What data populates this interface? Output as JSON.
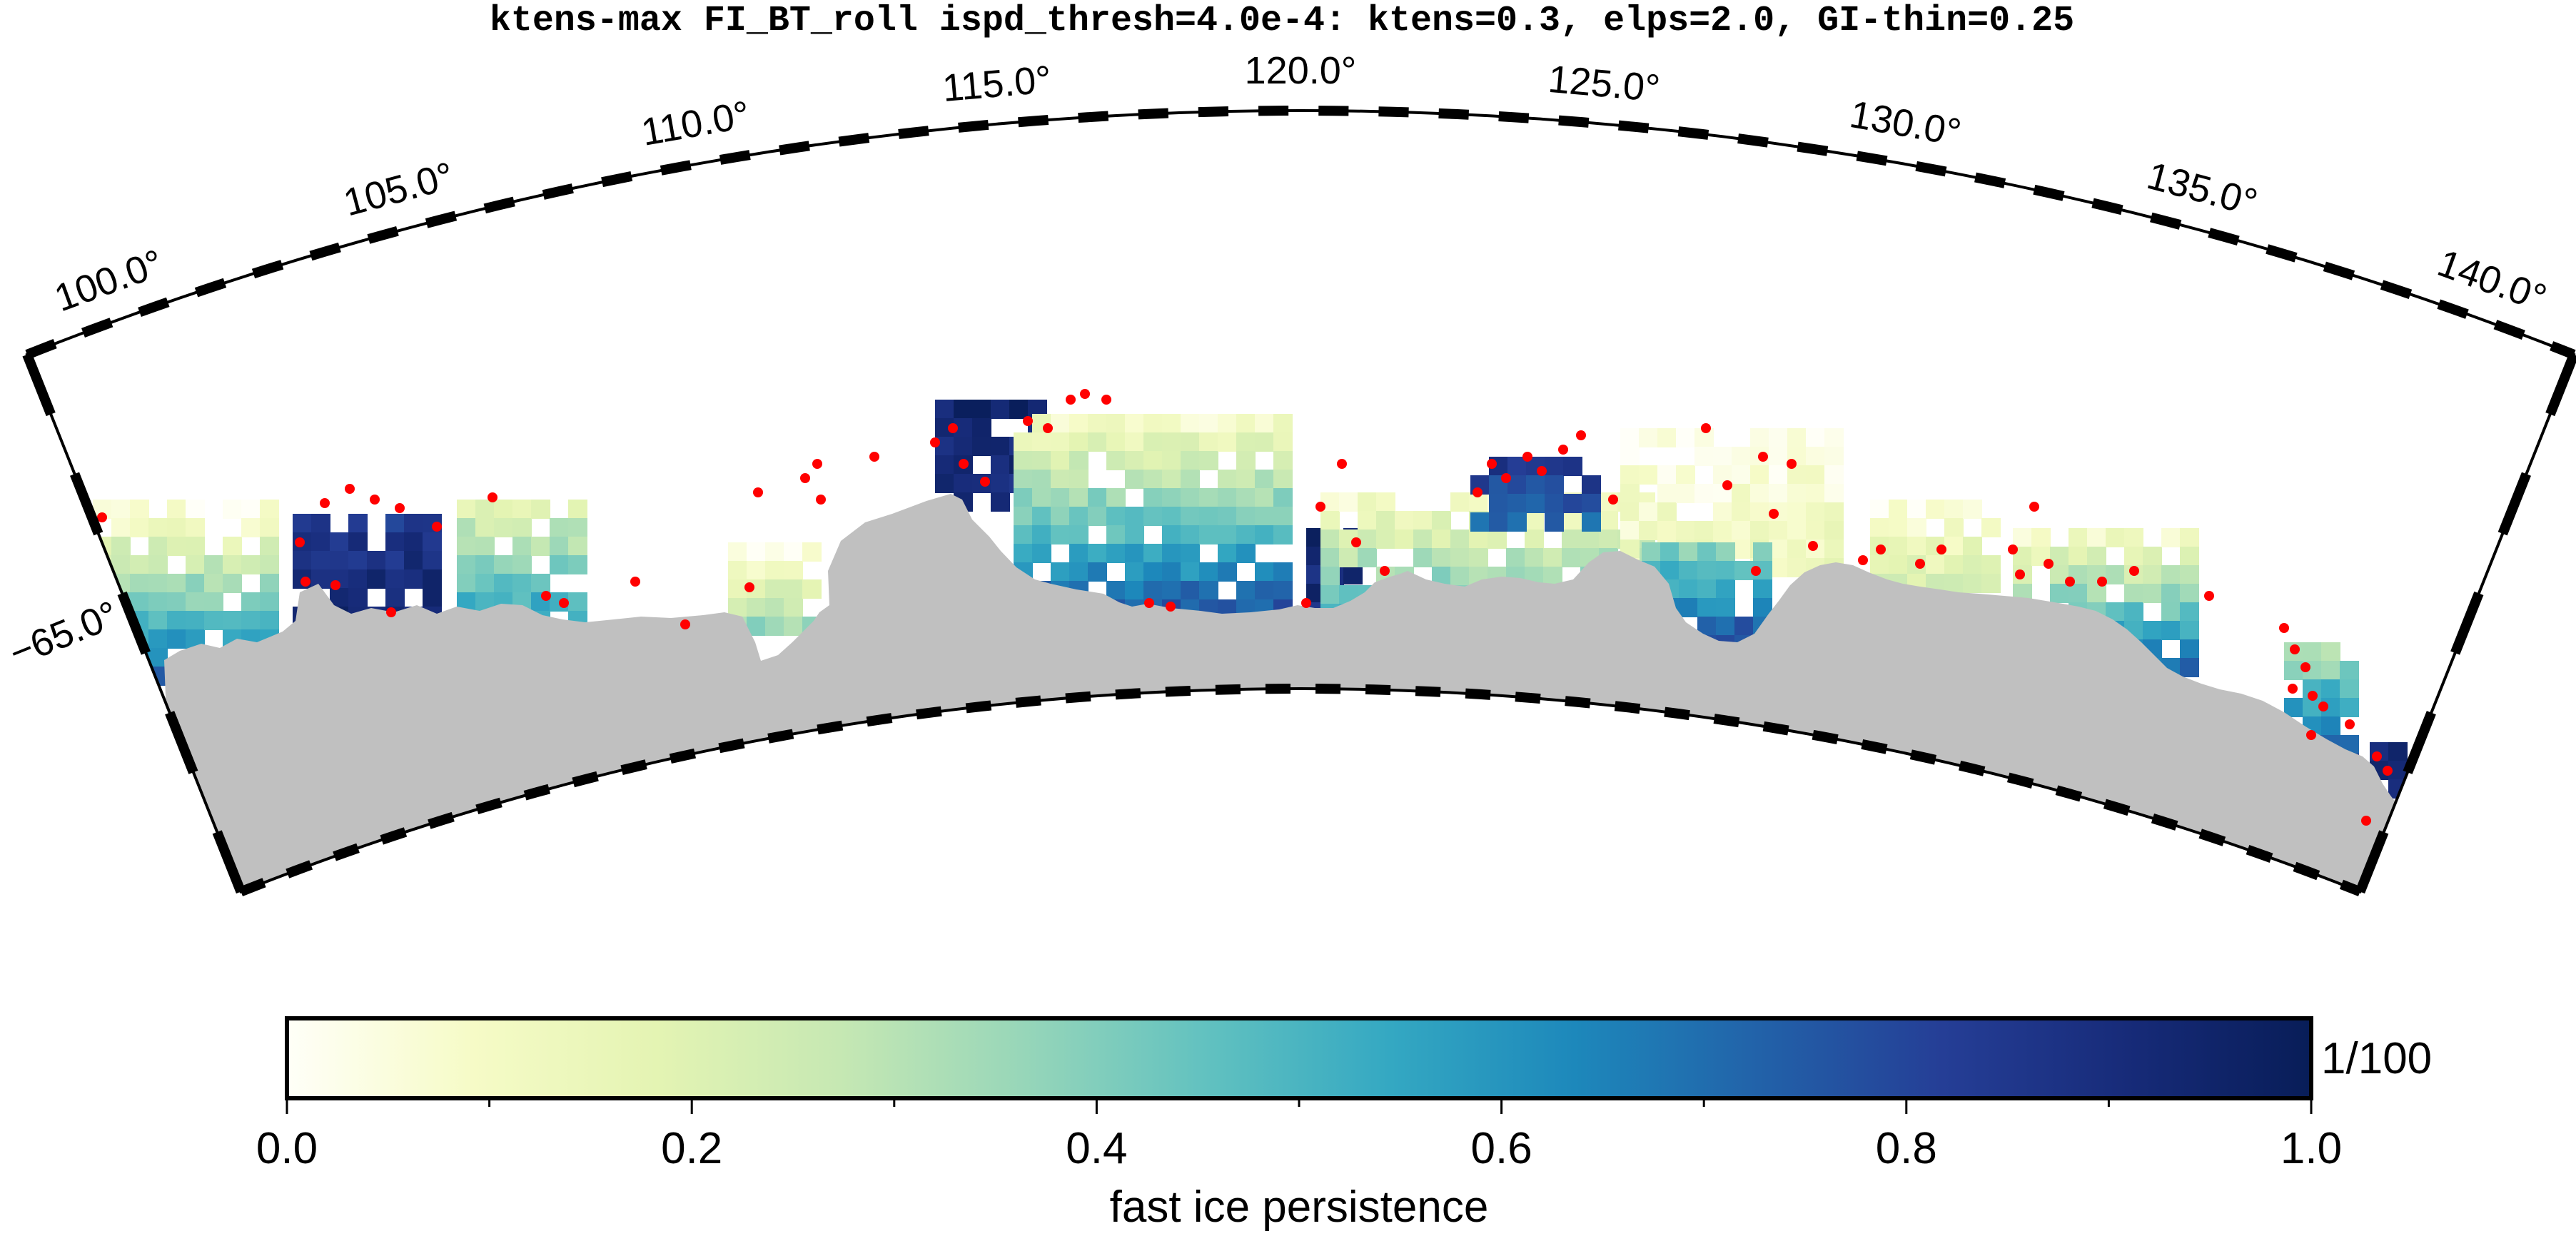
{
  "title": "ktens-max FI_BT_roll ispd_thresh=4.0e-4: ktens=0.3, elps=2.0, GI-thin=0.25",
  "map": {
    "projection": "polar stereographic (south)",
    "lon_range": [
      98.3,
      141.7
    ],
    "lat_range": [
      -68.0,
      -62.0
    ],
    "longitude_labels": [
      "100.0°",
      "105.0°",
      "110.0°",
      "115.0°",
      "120.0°",
      "125.0°",
      "130.0°",
      "135.0°",
      "140.0°"
    ],
    "latitude_labels": [
      "−65.0°"
    ],
    "land_color": "#c0c0c0",
    "grounded_iceberg_marker_color": "#ff0000"
  },
  "colorbar": {
    "label": "fast ice persistence",
    "unit_label": "1/100",
    "range": [
      0.0,
      1.0
    ],
    "tick_labels": [
      "0.0",
      "0.2",
      "0.4",
      "0.6",
      "0.8",
      "1.0"
    ],
    "colormap": "YlGnBu",
    "colors": [
      "#fffff8",
      "#f6fbc7",
      "#e4f4b3",
      "#c6e8b3",
      "#97d6b9",
      "#61c1c0",
      "#34a8c2",
      "#1d88bb",
      "#2262a9",
      "#253e96",
      "#172b79",
      "#081d58"
    ]
  }
}
